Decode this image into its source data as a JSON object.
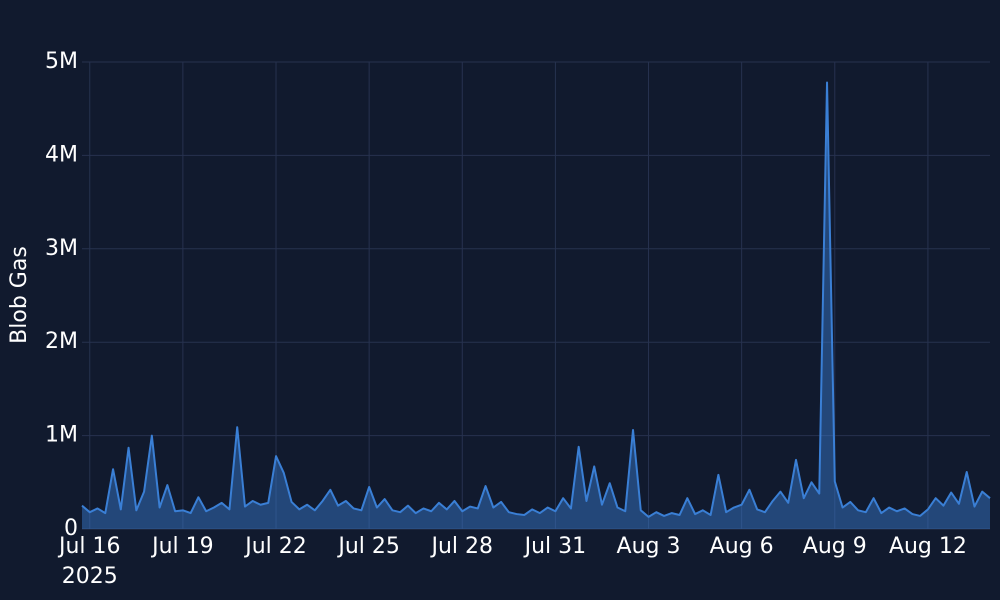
{
  "chart_data": {
    "type": "area",
    "y_axis_label": "Blob Gas",
    "x": [
      "2025-07-15 18:00",
      "2025-07-16 00:00",
      "2025-07-16 06:00",
      "2025-07-16 12:00",
      "2025-07-16 18:00",
      "2025-07-17 00:00",
      "2025-07-17 06:00",
      "2025-07-17 12:00",
      "2025-07-17 18:00",
      "2025-07-18 00:00",
      "2025-07-18 06:00",
      "2025-07-18 12:00",
      "2025-07-18 18:00",
      "2025-07-19 00:00",
      "2025-07-19 06:00",
      "2025-07-19 12:00",
      "2025-07-19 18:00",
      "2025-07-20 00:00",
      "2025-07-20 06:00",
      "2025-07-20 12:00",
      "2025-07-20 18:00",
      "2025-07-21 00:00",
      "2025-07-21 06:00",
      "2025-07-21 12:00",
      "2025-07-21 18:00",
      "2025-07-22 00:00",
      "2025-07-22 06:00",
      "2025-07-22 12:00",
      "2025-07-22 18:00",
      "2025-07-23 00:00",
      "2025-07-23 06:00",
      "2025-07-23 12:00",
      "2025-07-23 18:00",
      "2025-07-24 00:00",
      "2025-07-24 06:00",
      "2025-07-24 12:00",
      "2025-07-24 18:00",
      "2025-07-25 00:00",
      "2025-07-25 06:00",
      "2025-07-25 12:00",
      "2025-07-25 18:00",
      "2025-07-26 00:00",
      "2025-07-26 06:00",
      "2025-07-26 12:00",
      "2025-07-26 18:00",
      "2025-07-27 00:00",
      "2025-07-27 06:00",
      "2025-07-27 12:00",
      "2025-07-27 18:00",
      "2025-07-28 00:00",
      "2025-07-28 06:00",
      "2025-07-28 12:00",
      "2025-07-28 18:00",
      "2025-07-29 00:00",
      "2025-07-29 06:00",
      "2025-07-29 12:00",
      "2025-07-29 18:00",
      "2025-07-30 00:00",
      "2025-07-30 06:00",
      "2025-07-30 12:00",
      "2025-07-30 18:00",
      "2025-07-31 00:00",
      "2025-07-31 06:00",
      "2025-07-31 12:00",
      "2025-07-31 18:00",
      "2025-08-01 00:00",
      "2025-08-01 06:00",
      "2025-08-01 12:00",
      "2025-08-01 18:00",
      "2025-08-02 00:00",
      "2025-08-02 06:00",
      "2025-08-02 12:00",
      "2025-08-02 18:00",
      "2025-08-03 00:00",
      "2025-08-03 06:00",
      "2025-08-03 12:00",
      "2025-08-03 18:00",
      "2025-08-04 00:00",
      "2025-08-04 06:00",
      "2025-08-04 12:00",
      "2025-08-04 18:00",
      "2025-08-05 00:00",
      "2025-08-05 06:00",
      "2025-08-05 12:00",
      "2025-08-05 18:00",
      "2025-08-06 00:00",
      "2025-08-06 06:00",
      "2025-08-06 12:00",
      "2025-08-06 18:00",
      "2025-08-07 00:00",
      "2025-08-07 06:00",
      "2025-08-07 12:00",
      "2025-08-07 18:00",
      "2025-08-08 00:00",
      "2025-08-08 06:00",
      "2025-08-08 12:00",
      "2025-08-08 18:00",
      "2025-08-09 00:00",
      "2025-08-09 06:00",
      "2025-08-09 12:00",
      "2025-08-09 18:00",
      "2025-08-10 00:00",
      "2025-08-10 06:00",
      "2025-08-10 12:00",
      "2025-08-10 18:00",
      "2025-08-11 00:00",
      "2025-08-11 06:00",
      "2025-08-11 12:00",
      "2025-08-11 18:00",
      "2025-08-12 00:00",
      "2025-08-12 06:00",
      "2025-08-12 12:00",
      "2025-08-12 18:00",
      "2025-08-13 00:00",
      "2025-08-13 06:00",
      "2025-08-13 12:00",
      "2025-08-13 18:00",
      "2025-08-14 00:00"
    ],
    "series": [
      {
        "name": "Blob Gas",
        "color": "#3a7fd5",
        "values": [
          250000,
          180000,
          220000,
          170000,
          640000,
          210000,
          870000,
          200000,
          400000,
          1000000,
          230000,
          470000,
          190000,
          200000,
          170000,
          340000,
          190000,
          230000,
          280000,
          210000,
          1090000,
          240000,
          300000,
          260000,
          280000,
          780000,
          600000,
          290000,
          210000,
          260000,
          200000,
          300000,
          420000,
          250000,
          300000,
          220000,
          200000,
          450000,
          230000,
          320000,
          200000,
          180000,
          250000,
          170000,
          220000,
          190000,
          280000,
          210000,
          300000,
          190000,
          240000,
          220000,
          460000,
          230000,
          290000,
          180000,
          160000,
          150000,
          210000,
          170000,
          230000,
          190000,
          330000,
          220000,
          880000,
          300000,
          670000,
          260000,
          490000,
          230000,
          190000,
          1060000,
          200000,
          130000,
          180000,
          140000,
          170000,
          150000,
          330000,
          160000,
          200000,
          150000,
          580000,
          180000,
          230000,
          260000,
          420000,
          210000,
          180000,
          300000,
          400000,
          280000,
          740000,
          330000,
          500000,
          380000,
          4780000,
          510000,
          230000,
          290000,
          200000,
          180000,
          330000,
          170000,
          230000,
          190000,
          220000,
          160000,
          140000,
          210000,
          330000,
          250000,
          390000,
          270000,
          610000,
          240000,
          400000,
          330000
        ]
      }
    ],
    "xlim": [
      "2025-07-15 18:00",
      "2025-08-14 00:00"
    ],
    "xticks": [
      {
        "value": "2025-07-16",
        "label": "Jul 16"
      },
      {
        "value": "2025-07-19",
        "label": "Jul 19"
      },
      {
        "value": "2025-07-22",
        "label": "Jul 22"
      },
      {
        "value": "2025-07-25",
        "label": "Jul 25"
      },
      {
        "value": "2025-07-28",
        "label": "Jul 28"
      },
      {
        "value": "2025-07-31",
        "label": "Jul 31"
      },
      {
        "value": "2025-08-03",
        "label": "Aug 3"
      },
      {
        "value": "2025-08-06",
        "label": "Aug 6"
      },
      {
        "value": "2025-08-09",
        "label": "Aug 9"
      },
      {
        "value": "2025-08-12",
        "label": "Aug 12"
      }
    ],
    "xtick_year": "2025",
    "ylim": [
      0,
      5000000
    ],
    "yticks": [
      0,
      {
        "value": 1000000,
        "label": "1M"
      },
      {
        "value": 2000000,
        "label": "2M"
      },
      {
        "value": 3000000,
        "label": "3M"
      },
      {
        "value": 4000000,
        "label": "4M"
      },
      {
        "value": 5000000,
        "label": "5M"
      }
    ],
    "grid": true
  }
}
